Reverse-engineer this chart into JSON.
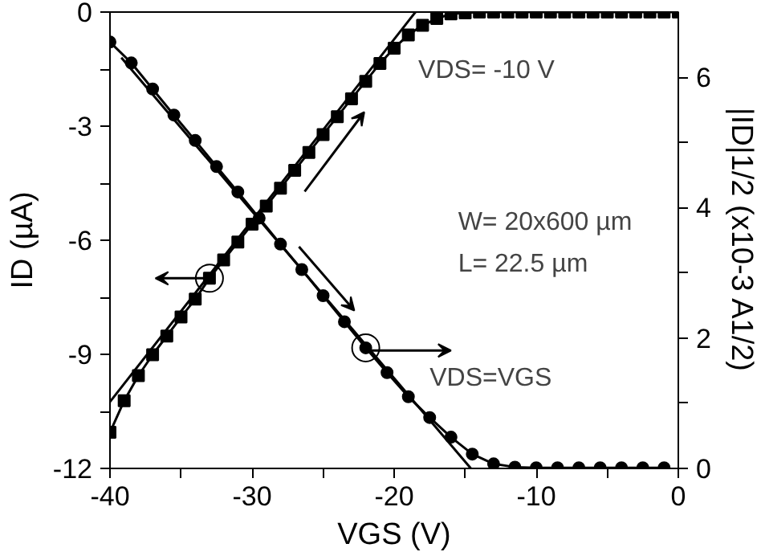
{
  "chart_data": {
    "type": "line",
    "xlabel": "VGS (V)",
    "ylabel": "ID (µA)",
    "y2label": "|ID|1/2 (x10-3 A1/2)",
    "xlim": [
      -40,
      0
    ],
    "xticks": [
      -40,
      {
        "value": -35,
        "label": null
      },
      -30,
      {
        "value": -25,
        "label": null
      },
      -20,
      {
        "value": -15,
        "label": null
      },
      -10,
      {
        "value": -5,
        "label": null
      },
      0
    ],
    "ylim": [
      -12,
      0
    ],
    "yticks": [
      -12,
      {
        "value": -10.5,
        "label": null
      },
      -9,
      {
        "value": -7.5,
        "label": null
      },
      -6,
      {
        "value": -4.5,
        "label": null
      },
      -3,
      {
        "value": -1.5,
        "label": null
      },
      0
    ],
    "y2lim": [
      0,
      7
    ],
    "y2ticks": [
      0,
      {
        "value": 1,
        "label": null
      },
      2,
      {
        "value": 3,
        "label": null
      },
      4,
      {
        "value": 5,
        "label": null
      },
      6
    ],
    "grid": false,
    "line_style": "solid",
    "series": [
      {
        "color": "#000000",
        "marker": "square",
        "x": [
          -40,
          -39,
          -38,
          -37,
          -36,
          -35,
          -34,
          -33,
          -32,
          -31,
          -30,
          -29,
          -28,
          -27,
          -26,
          -25,
          -24,
          -23,
          -22,
          -21,
          -20,
          -19,
          -18,
          -17,
          -16,
          -15,
          -14,
          -13,
          -12,
          -11,
          -10,
          -9,
          -8,
          -7,
          -6,
          -5,
          -4,
          -3,
          -2,
          -1,
          0
        ],
        "values": [
          -11.05,
          -10.22,
          -9.56,
          -9.01,
          -8.52,
          -8.02,
          -7.55,
          -7.0,
          -6.52,
          -6.05,
          -5.58,
          -5.1,
          -4.63,
          -4.16,
          -3.69,
          -3.22,
          -2.75,
          -2.28,
          -1.82,
          -1.35,
          -0.95,
          -0.6,
          -0.35,
          -0.17,
          -0.05,
          -0.02,
          0,
          0,
          0,
          0,
          0,
          0,
          0,
          0,
          0,
          0,
          0,
          0,
          0,
          0,
          0
        ]
      },
      {
        "color": "#000000",
        "marker": "none",
        "x": [
          -40,
          -18.5
        ],
        "values": [
          -10.25,
          0
        ]
      },
      {
        "color": "#000000",
        "marker": "circle",
        "axis": "y2",
        "x": [
          -40,
          -38.5,
          -37,
          -35.5,
          -34,
          -32.5,
          -31,
          -29.5,
          -28,
          -26.5,
          -25,
          -23.5,
          -22,
          -20.5,
          -19,
          -17.5,
          -16,
          -14.5,
          -13,
          -11.5,
          -10,
          -8.5,
          -7,
          -5.5,
          -4,
          -2.5,
          -1
        ],
        "values": [
          6.54,
          6.22,
          5.82,
          5.42,
          5.03,
          4.63,
          4.24,
          3.84,
          3.44,
          3.05,
          2.65,
          2.25,
          1.85,
          1.47,
          1.1,
          0.78,
          0.48,
          0.22,
          0.07,
          0.02,
          0.01,
          0.01,
          0.01,
          0.01,
          0.01,
          0.01,
          0.01
        ]
      },
      {
        "color": "#000000",
        "marker": "none",
        "axis": "y2",
        "x": [
          -39.2,
          -14.6
        ],
        "values": [
          6.3,
          0
        ]
      }
    ],
    "annotations": [
      "VDS= -10 V",
      "W= 20x600 µm",
      "L= 22.5 µm",
      "VDS=VGS"
    ]
  }
}
